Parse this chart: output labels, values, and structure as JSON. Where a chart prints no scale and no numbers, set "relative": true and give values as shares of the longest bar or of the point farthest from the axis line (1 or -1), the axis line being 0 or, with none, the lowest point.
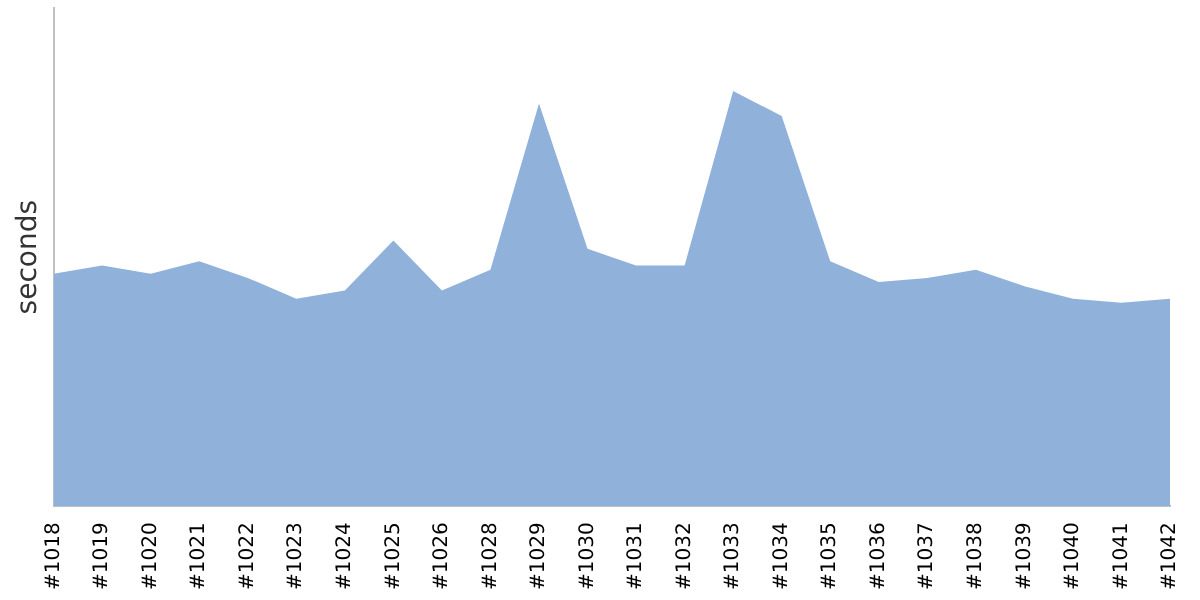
{
  "chart_data": {
    "type": "area",
    "ylabel": "seconds",
    "relative": true,
    "grid": false,
    "legend": false,
    "categories": [
      "#1018",
      "#1019",
      "#1020",
      "#1021",
      "#1022",
      "#1023",
      "#1024",
      "#1025",
      "#1026",
      "#1028",
      "#1029",
      "#1030",
      "#1031",
      "#1032",
      "#1033",
      "#1034",
      "#1035",
      "#1036",
      "#1037",
      "#1038",
      "#1039",
      "#1040",
      "#1041",
      "#1042"
    ],
    "series": [
      {
        "color": "#8fb1da",
        "values": [
          0.56,
          0.58,
          0.56,
          0.59,
          0.55,
          0.5,
          0.52,
          0.64,
          0.52,
          0.57,
          0.97,
          0.62,
          0.58,
          0.58,
          1,
          0.94,
          0.59,
          0.54,
          0.55,
          0.57,
          0.53,
          0.5,
          0.49,
          0.5
        ]
      }
    ]
  }
}
